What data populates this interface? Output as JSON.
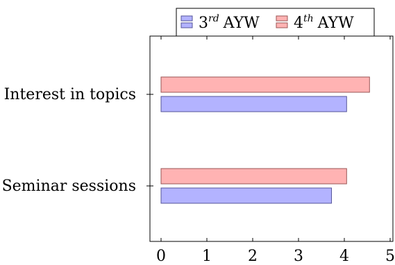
{
  "chart_data": {
    "type": "bar",
    "orientation": "horizontal",
    "categories": [
      "Interest in topics",
      "Seminar sessions"
    ],
    "series": [
      {
        "name_base": "3",
        "name_sup": "rd",
        "name_suffix": "AYW",
        "color_fill": "#b3b3ff",
        "color_stroke": "#555599",
        "values": [
          4.05,
          3.72
        ]
      },
      {
        "name_base": "4",
        "name_sup": "th",
        "name_suffix": "AYW",
        "color_fill": "#ffb3b3",
        "color_stroke": "#995555",
        "values": [
          4.55,
          4.05
        ]
      }
    ],
    "xticks": [
      "0",
      "1",
      "2",
      "3",
      "4",
      "5"
    ],
    "xlim": [
      -0.25,
      5.0
    ],
    "title": "",
    "xlabel": "",
    "ylabel": "",
    "grid": false,
    "legend_position": "top"
  }
}
